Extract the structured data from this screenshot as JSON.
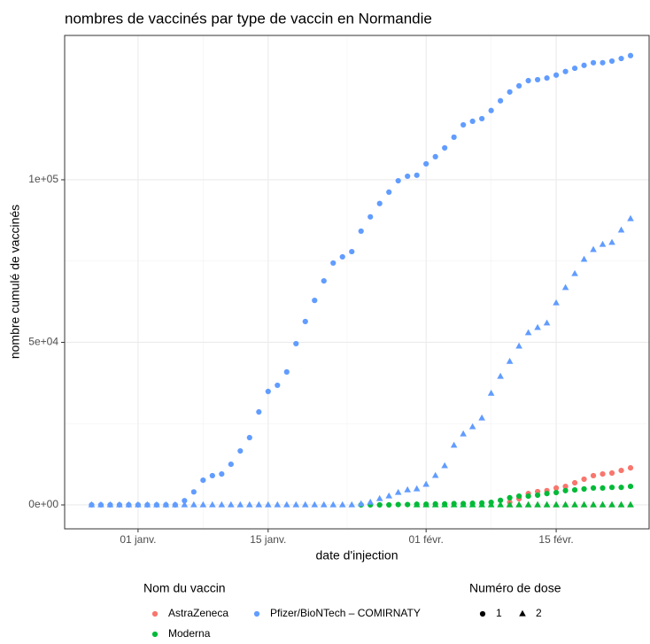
{
  "chart_data": {
    "type": "scatter",
    "title": "nombres de vaccinés par type de vaccin en Normandie",
    "x_label": "date d'injection",
    "y_label": "nombre cumulé de vaccinés",
    "x": [
      -5,
      -4,
      -3,
      -2,
      -1,
      0,
      1,
      2,
      3,
      4,
      5,
      6,
      7,
      8,
      9,
      10,
      11,
      12,
      13,
      14,
      15,
      16,
      17,
      18,
      19,
      20,
      21,
      22,
      23,
      24,
      25,
      26,
      27,
      28,
      29,
      30,
      31,
      32,
      33,
      34,
      35,
      36,
      37,
      38,
      39,
      40,
      41,
      42,
      43,
      44,
      45,
      46,
      47,
      48,
      49,
      50,
      51,
      52,
      53
    ],
    "xlim": [
      -7.9,
      55
    ],
    "xticks": [
      {
        "value": 0,
        "label": "01 janv."
      },
      {
        "value": 14,
        "label": "15 janv."
      },
      {
        "value": 31,
        "label": "01 févr."
      },
      {
        "value": 45,
        "label": "15 févr."
      }
    ],
    "ylim": [
      -7360,
      144400
    ],
    "yticks": [
      {
        "value": 0,
        "label": "0e+00"
      },
      {
        "value": 50000,
        "label": "5e+04"
      },
      {
        "value": 100000,
        "label": "1e+05"
      }
    ],
    "grid": true,
    "color_legend_title": "Nom du vaccin",
    "shape_legend_title": "Numéro de dose",
    "doses": [
      {
        "name": "1",
        "shape": "circle"
      },
      {
        "name": "2",
        "shape": "triangle"
      }
    ],
    "series": [
      {
        "name": "AstraZeneca",
        "color": "#F8766D",
        "doses": [
          {
            "values": [
              null,
              null,
              null,
              null,
              null,
              null,
              null,
              null,
              null,
              null,
              null,
              null,
              null,
              null,
              null,
              null,
              null,
              null,
              null,
              null,
              null,
              null,
              null,
              null,
              null,
              null,
              null,
              null,
              null,
              null,
              null,
              null,
              null,
              null,
              null,
              null,
              null,
              null,
              null,
              null,
              null,
              null,
              null,
              null,
              null,
              800,
              1900,
              3500,
              4100,
              4400,
              5200,
              5700,
              6800,
              7900,
              9000,
              9500,
              9800,
              10600,
              11400
            ]
          },
          {
            "values": [
              null,
              null,
              null,
              null,
              null,
              null,
              null,
              null,
              null,
              null,
              null,
              null,
              null,
              null,
              null,
              null,
              null,
              null,
              null,
              null,
              null,
              null,
              null,
              null,
              null,
              null,
              null,
              null,
              null,
              null,
              null,
              null,
              null,
              null,
              null,
              null,
              null,
              null,
              null,
              null,
              null,
              null,
              null,
              null,
              null,
              0,
              0,
              0,
              0,
              0,
              0,
              0,
              0,
              0,
              0,
              0,
              0,
              0,
              0
            ]
          }
        ]
      },
      {
        "name": "Moderna",
        "color": "#00BA38",
        "doses": [
          {
            "values": [
              null,
              null,
              null,
              null,
              null,
              null,
              null,
              null,
              null,
              null,
              null,
              null,
              null,
              null,
              null,
              null,
              null,
              null,
              null,
              null,
              null,
              null,
              null,
              null,
              null,
              null,
              null,
              null,
              null,
              0,
              0,
              0,
              0,
              100,
              100,
              200,
              200,
              300,
              300,
              400,
              400,
              500,
              600,
              800,
              1400,
              2200,
              2700,
              2700,
              3000,
              3500,
              3800,
              4400,
              4600,
              4900,
              5200,
              5200,
              5400,
              5400,
              5700
            ]
          },
          {
            "values": [
              null,
              null,
              null,
              null,
              null,
              null,
              null,
              null,
              null,
              null,
              null,
              null,
              null,
              null,
              null,
              null,
              null,
              null,
              null,
              null,
              null,
              null,
              null,
              null,
              null,
              null,
              null,
              null,
              null,
              null,
              null,
              null,
              null,
              null,
              null,
              0,
              0,
              0,
              0,
              0,
              0,
              0,
              0,
              0,
              0,
              0,
              0,
              0,
              0,
              0,
              0,
              0,
              0,
              0,
              0,
              0,
              0,
              0,
              0
            ]
          }
        ]
      },
      {
        "name": "Pfizer/BioNTech – COMIRNATY",
        "color": "#619CFF",
        "doses": [
          {
            "values": [
              0,
              0,
              0,
              0,
              0,
              0,
              0,
              0,
              0,
              0,
              1300,
              4000,
              7600,
              9000,
              9500,
              12500,
              16600,
              20700,
              28600,
              34900,
              36800,
              40900,
              49600,
              56400,
              62900,
              68900,
              74400,
              76300,
              77900,
              84200,
              88600,
              92700,
              96200,
              99700,
              101100,
              101400,
              104900,
              107100,
              109800,
              113100,
              116900,
              118000,
              118800,
              121300,
              124300,
              127000,
              128900,
              130500,
              130800,
              131300,
              132200,
              133300,
              134300,
              135200,
              136000,
              136000,
              136500,
              137300,
              138200
            ]
          },
          {
            "values": [
              0,
              0,
              0,
              0,
              0,
              0,
              0,
              0,
              0,
              0,
              0,
              0,
              0,
              0,
              0,
              0,
              0,
              0,
              0,
              0,
              0,
              0,
              0,
              0,
              0,
              0,
              0,
              0,
              0,
              300,
              800,
              1900,
              2700,
              3800,
              4600,
              4900,
              6300,
              9000,
              12000,
              18300,
              21800,
              24000,
              26700,
              34300,
              39500,
              44100,
              48800,
              52900,
              54500,
              55900,
              62100,
              66800,
              71100,
              75500,
              78500,
              80100,
              80700,
              84500,
              88000
            ]
          }
        ]
      }
    ]
  }
}
